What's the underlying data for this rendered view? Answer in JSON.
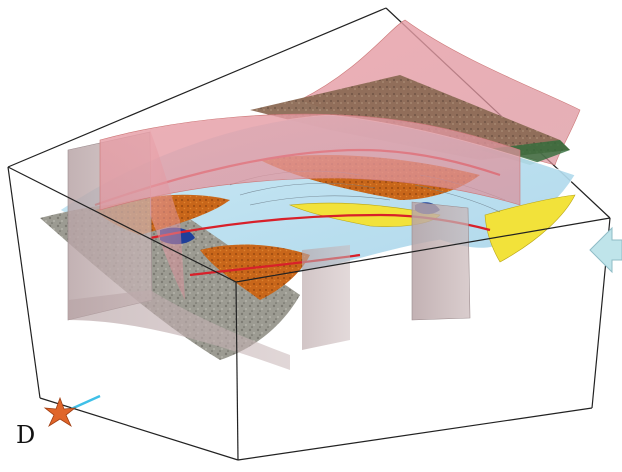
{
  "figure": {
    "label": "D",
    "compass_icon": "compass-star-icon",
    "direction_arrow_icon": "arrow-left-icon",
    "colors": {
      "fault_plane": "#e8a0a8",
      "fault_plane_gray": "#b9a8aa",
      "horizon_blue": "#b9dff0",
      "geology_orange": "#c8661a",
      "geology_yellow": "#f2e23a",
      "geology_red_line": "#d8202a",
      "terrain_gray": "#9a9a92",
      "terrain_brown": "#8a6a52",
      "arrow_fill": "#bfe4ea",
      "box_stroke": "#222222"
    }
  }
}
